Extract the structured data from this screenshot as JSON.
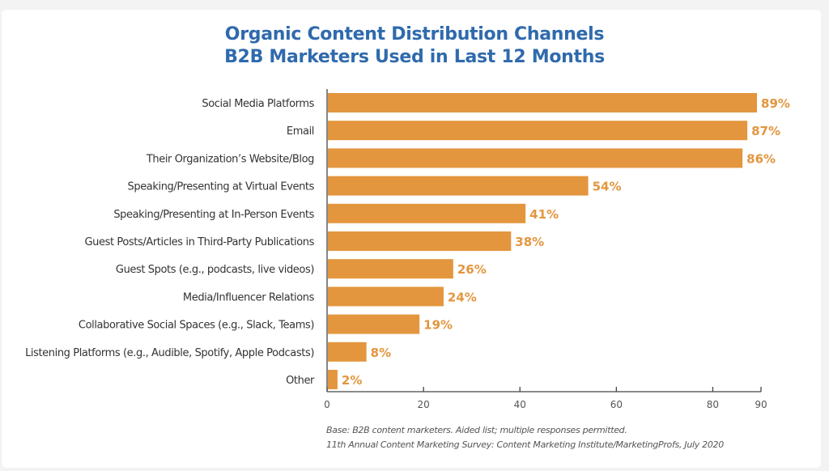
{
  "chart_data": {
    "type": "bar",
    "orientation": "horizontal",
    "title": "Organic Content Distribution Channels",
    "subtitle": "B2B Marketers Used in Last 12 Months",
    "categories": [
      "Social Media Platforms",
      "Email",
      "Their Organization’s Website/Blog",
      "Speaking/Presenting at Virtual Events",
      "Speaking/Presenting at In-Person Events",
      "Guest Posts/Articles in Third-Party Publications",
      "Guest Spots (e.g., podcasts, live videos)",
      "Media/Influencer Relations",
      "Collaborative Social Spaces (e.g., Slack, Teams)",
      "Listening Platforms (e.g., Audible, Spotify, Apple Podcasts)",
      "Other"
    ],
    "values": [
      89,
      87,
      86,
      54,
      41,
      38,
      26,
      24,
      19,
      8,
      2
    ],
    "value_labels": [
      "89%",
      "87%",
      "86%",
      "54%",
      "41%",
      "38%",
      "26%",
      "24%",
      "19%",
      "8%",
      "2%"
    ],
    "xlabel": "",
    "ylabel": "",
    "xlim": [
      0,
      90
    ],
    "xticks": [
      0,
      20,
      40,
      60,
      80,
      90
    ],
    "grid": false,
    "legend": "none",
    "bar_color": "#e3963e",
    "label_color": "#e3963e",
    "notes": [
      "Base: B2B content marketers. Aided list; multiple responses permitted.",
      "11th Annual Content Marketing Survey: Content Marketing Institute/MarketingProfs, July 2020"
    ]
  },
  "colors": {
    "title": "#2f6aad",
    "bar": "#e3963e",
    "axis": "#444444"
  }
}
